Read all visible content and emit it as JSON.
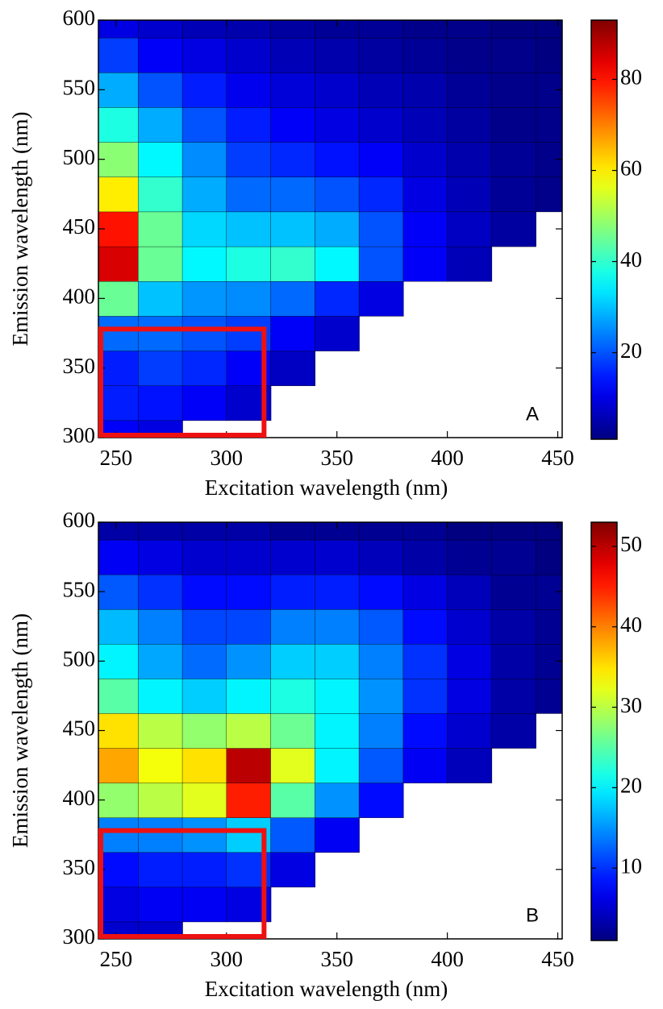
{
  "chart_data": [
    {
      "type": "heatmap",
      "annotation": "A",
      "xlabel": "Excitation wavelength (nm)",
      "ylabel": "Emission wavelength (nm)",
      "colormap": "jet",
      "x": [
        250,
        270,
        290,
        310,
        330,
        350,
        370,
        390,
        410,
        430,
        450
      ],
      "y": [
        300,
        325,
        350,
        375,
        400,
        425,
        450,
        475,
        500,
        525,
        550,
        575,
        600
      ],
      "z": [
        [
          12,
          10,
          null,
          null,
          null,
          null,
          null,
          null,
          null,
          null,
          null
        ],
        [
          15,
          14,
          12,
          8,
          null,
          null,
          null,
          null,
          null,
          null,
          null
        ],
        [
          15,
          18,
          16,
          12,
          7,
          null,
          null,
          null,
          null,
          null,
          null
        ],
        [
          22,
          22,
          20,
          18,
          12,
          8,
          null,
          null,
          null,
          null,
          null
        ],
        [
          45,
          30,
          26,
          25,
          22,
          16,
          10,
          null,
          null,
          null,
          null
        ],
        [
          85,
          45,
          35,
          38,
          40,
          35,
          20,
          12,
          6,
          null,
          null
        ],
        [
          80,
          45,
          32,
          30,
          30,
          28,
          20,
          12,
          7,
          4,
          null
        ],
        [
          60,
          40,
          28,
          22,
          22,
          20,
          16,
          10,
          6,
          3,
          2
        ],
        [
          48,
          35,
          25,
          18,
          16,
          14,
          12,
          8,
          5,
          3,
          2
        ],
        [
          38,
          28,
          20,
          15,
          12,
          10,
          8,
          6,
          4,
          2,
          2
        ],
        [
          28,
          20,
          15,
          11,
          9,
          8,
          6,
          5,
          3,
          2,
          2
        ],
        [
          18,
          12,
          10,
          8,
          6,
          5,
          4,
          3,
          2,
          2,
          1
        ],
        [
          10,
          8,
          6,
          5,
          4,
          3,
          3,
          2,
          2,
          1,
          1
        ]
      ],
      "xlim": [
        242,
        452
      ],
      "ylim": [
        300,
        600
      ],
      "xticks": [
        250,
        300,
        350,
        400,
        450
      ],
      "yticks": [
        300,
        350,
        400,
        450,
        500,
        550,
        600
      ],
      "clim": [
        1,
        93
      ],
      "cticks": [
        20,
        40,
        60,
        80
      ],
      "region": {
        "color": "#ee1111",
        "xlim": [
          242,
          317
        ],
        "ylim": [
          300,
          378
        ]
      }
    },
    {
      "type": "heatmap",
      "annotation": "B",
      "xlabel": "Excitation wavelength (nm)",
      "ylabel": "Emission wavelength (nm)",
      "colormap": "jet",
      "x": [
        250,
        270,
        290,
        310,
        330,
        350,
        370,
        390,
        410,
        430,
        450
      ],
      "y": [
        300,
        325,
        350,
        375,
        400,
        425,
        450,
        475,
        500,
        525,
        550,
        575,
        600
      ],
      "z": [
        [
          5,
          5,
          null,
          null,
          null,
          null,
          null,
          null,
          null,
          null,
          null
        ],
        [
          6,
          7,
          7,
          6,
          null,
          null,
          null,
          null,
          null,
          null,
          null
        ],
        [
          8,
          9,
          9,
          10,
          6,
          null,
          null,
          null,
          null,
          null,
          null
        ],
        [
          14,
          14,
          15,
          18,
          12,
          7,
          null,
          null,
          null,
          null,
          null
        ],
        [
          28,
          30,
          32,
          45,
          25,
          15,
          8,
          null,
          null,
          null,
          null
        ],
        [
          38,
          33,
          35,
          50,
          32,
          20,
          12,
          7,
          4,
          null,
          null
        ],
        [
          35,
          30,
          28,
          30,
          26,
          20,
          14,
          8,
          5,
          3,
          null
        ],
        [
          25,
          20,
          18,
          20,
          22,
          20,
          15,
          10,
          6,
          3,
          2
        ],
        [
          20,
          16,
          13,
          15,
          18,
          18,
          14,
          10,
          6,
          3,
          2
        ],
        [
          17,
          14,
          11,
          11,
          14,
          14,
          12,
          8,
          5,
          3,
          2
        ],
        [
          12,
          10,
          8,
          8,
          9,
          9,
          8,
          6,
          4,
          2,
          2
        ],
        [
          7,
          6,
          5,
          5,
          5,
          5,
          4,
          3,
          2,
          2,
          1
        ],
        [
          3,
          3,
          3,
          3,
          2,
          2,
          2,
          2,
          1,
          1,
          1
        ]
      ],
      "xlim": [
        242,
        452
      ],
      "ylim": [
        300,
        600
      ],
      "xticks": [
        250,
        300,
        350,
        400,
        450
      ],
      "yticks": [
        300,
        350,
        400,
        450,
        500,
        550,
        600
      ],
      "clim": [
        1,
        53
      ],
      "cticks": [
        10,
        20,
        30,
        40,
        50
      ],
      "region": {
        "color": "#ee1111",
        "xlim": [
          242,
          317
        ],
        "ylim": [
          300,
          378
        ]
      }
    }
  ]
}
